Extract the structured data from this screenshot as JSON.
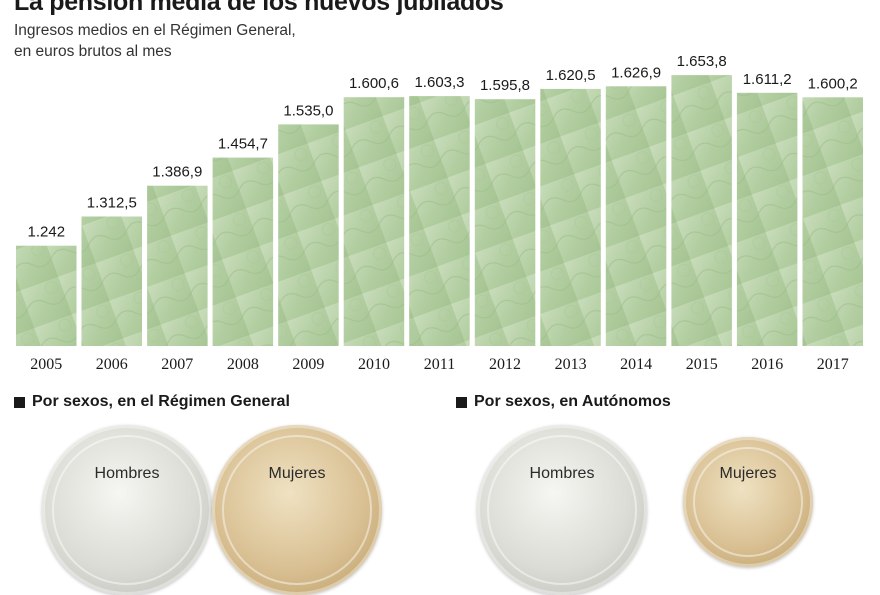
{
  "header": {
    "title": "La pensión media de los nuevos jubilados",
    "subtitle_line1": "Ingresos medios en el Régimen General,",
    "subtitle_line2": "en euros brutos al mes"
  },
  "chart_data": {
    "type": "bar",
    "categories": [
      "2005",
      "2006",
      "2007",
      "2008",
      "2009",
      "2010",
      "2011",
      "2012",
      "2013",
      "2014",
      "2015",
      "2016",
      "2017"
    ],
    "values": [
      1242,
      1312.5,
      1386.9,
      1454.7,
      1535.0,
      1600.6,
      1603.3,
      1595.8,
      1620.5,
      1626.9,
      1653.8,
      1611.2,
      1600.2
    ],
    "value_labels": [
      "1.242",
      "1.312,5",
      "1.386,9",
      "1.454,7",
      "1.535,0",
      "1.600,6",
      "1.603,3",
      "1.595,8",
      "1.620,5",
      "1.626,9",
      "1.653,8",
      "1.611,2",
      "1.600,2"
    ],
    "ylim": [
      0,
      1700
    ],
    "xlabel": "",
    "ylabel": "",
    "grid": false,
    "bar_color": "#b9d3a9"
  },
  "sections": {
    "general": {
      "heading": "Por sexos, en el Régimen General",
      "men_label": "Hombres",
      "women_label": "Mujeres"
    },
    "autonomos": {
      "heading": "Por sexos, en Autónomos",
      "men_label": "Hombres",
      "women_label": "Mujeres"
    }
  }
}
